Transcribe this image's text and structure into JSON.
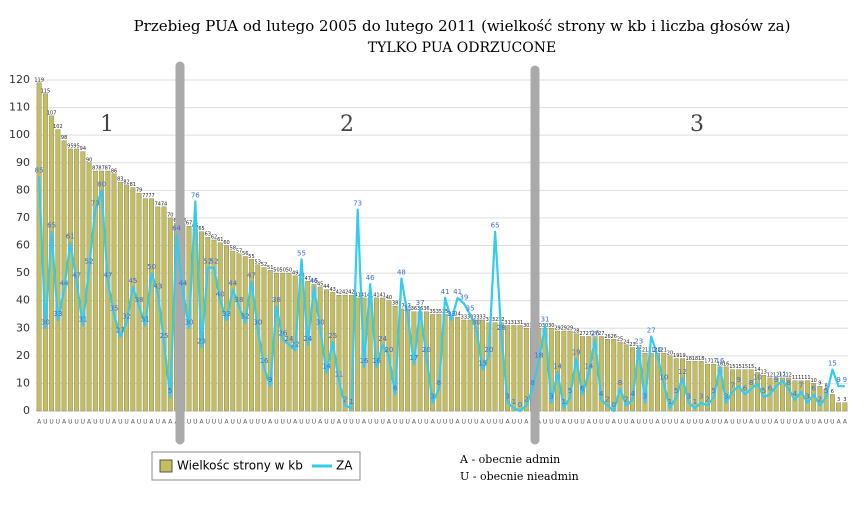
{
  "chart_data": {
    "type": "bar-line",
    "title": "Przebieg PUA od lutego 2005 do lutego 2011 (wielkość strony w kb i liczba głosów za)",
    "subtitle": "TYLKO PUA ODRZUCONE",
    "sections": [
      "1",
      "2",
      "3"
    ],
    "notes": [
      "A - obecnie admin",
      "U - obecnie nieadmin"
    ],
    "ylim": [
      0,
      120
    ],
    "yticks": [
      0,
      10,
      20,
      30,
      40,
      50,
      60,
      70,
      80,
      90,
      100,
      110,
      120
    ],
    "grid": true,
    "legend": "bottom-left",
    "categories": [
      "A",
      "U",
      "U",
      "U",
      "A",
      "U",
      "U",
      "U",
      "A",
      "U",
      "U",
      "U",
      "A",
      "U",
      "U",
      "A",
      "U",
      "U",
      "A",
      "U",
      "A",
      "A",
      "A",
      "U",
      "U",
      "U",
      "A",
      "U",
      "U",
      "U",
      "A",
      "U",
      "U",
      "A",
      "U",
      "U",
      "U",
      "A",
      "U",
      "U",
      "U",
      "A",
      "U",
      "U",
      "U",
      "A",
      "U",
      "U",
      "A",
      "U",
      "U",
      "U",
      "A",
      "U",
      "U",
      "U",
      "A",
      "U",
      "U",
      "U",
      "A",
      "U",
      "U",
      "A",
      "U",
      "U",
      "U",
      "A",
      "U",
      "U",
      "U",
      "A",
      "U",
      "U",
      "U",
      "A",
      "U",
      "U",
      "A",
      "A",
      "A",
      "U",
      "U",
      "U",
      "A",
      "U",
      "U",
      "U",
      "A",
      "U",
      "U",
      "U",
      "A",
      "U",
      "U",
      "A",
      "U",
      "U",
      "U",
      "A",
      "U",
      "U",
      "U",
      "A",
      "U",
      "U",
      "U",
      "A",
      "U",
      "U",
      "A",
      "U",
      "U",
      "U",
      "A",
      "U",
      "U",
      "U",
      "A",
      "U",
      "U",
      "U",
      "A",
      "U",
      "U",
      "A",
      "U",
      "U",
      "A",
      "A"
    ],
    "series": [
      {
        "name": "Wielkośc strony w kb",
        "color": "#c4be5c",
        "values": [
          119,
          115,
          107,
          102,
          98,
          95,
          95,
          94,
          90,
          87,
          87,
          87,
          86,
          83,
          82,
          81,
          79,
          77,
          77,
          74,
          74,
          70,
          68,
          68,
          67,
          66,
          65,
          63,
          62,
          61,
          60,
          58,
          57,
          56,
          55,
          53,
          52,
          51,
          50,
          50,
          50,
          49,
          48,
          47,
          46,
          45,
          44,
          43,
          42,
          42,
          42,
          41,
          41,
          41,
          41,
          41,
          40,
          38,
          37,
          37,
          36,
          36,
          36,
          35,
          35,
          35,
          34,
          34,
          33,
          33,
          33,
          33,
          32,
          32,
          32,
          31,
          31,
          31,
          30,
          30,
          30,
          30,
          30,
          29,
          29,
          29,
          28,
          27,
          27,
          27,
          27,
          26,
          26,
          25,
          24,
          23,
          22,
          21,
          21,
          21,
          21,
          20,
          19,
          19,
          18,
          18,
          18,
          17,
          17,
          16,
          16,
          15,
          15,
          15,
          15,
          14,
          13,
          12,
          12,
          12,
          12,
          11,
          11,
          11,
          10,
          9,
          8,
          6,
          3,
          3
        ]
      },
      {
        "name": "ZA",
        "color": "#33ccee",
        "values": [
          85,
          30,
          65,
          33,
          44,
          61,
          47,
          31,
          52,
          73,
          80,
          47,
          35,
          27,
          32,
          45,
          38,
          31,
          50,
          43,
          25,
          5,
          64,
          44,
          30,
          76,
          23,
          52,
          52,
          40,
          33,
          44,
          38,
          32,
          47,
          30,
          16,
          9,
          38,
          26,
          24,
          22,
          55,
          24,
          45,
          30,
          14,
          25,
          11,
          2,
          1,
          73,
          16,
          46,
          16,
          24,
          20,
          6,
          48,
          35,
          17,
          37,
          20,
          3,
          8,
          41,
          33,
          41,
          39,
          35,
          30,
          15,
          20,
          65,
          28,
          3,
          1,
          0,
          2,
          8,
          18,
          31,
          3,
          14,
          1,
          5,
          19,
          6,
          14,
          26,
          4,
          2,
          0,
          8,
          2,
          4,
          23,
          3,
          27,
          20,
          10,
          1,
          5,
          12,
          3,
          1,
          3,
          2,
          5,
          16,
          3,
          7,
          9,
          6,
          8,
          10,
          5,
          6,
          9,
          11,
          8,
          4,
          7,
          3,
          6,
          2,
          5,
          15,
          9,
          9
        ]
      }
    ]
  }
}
